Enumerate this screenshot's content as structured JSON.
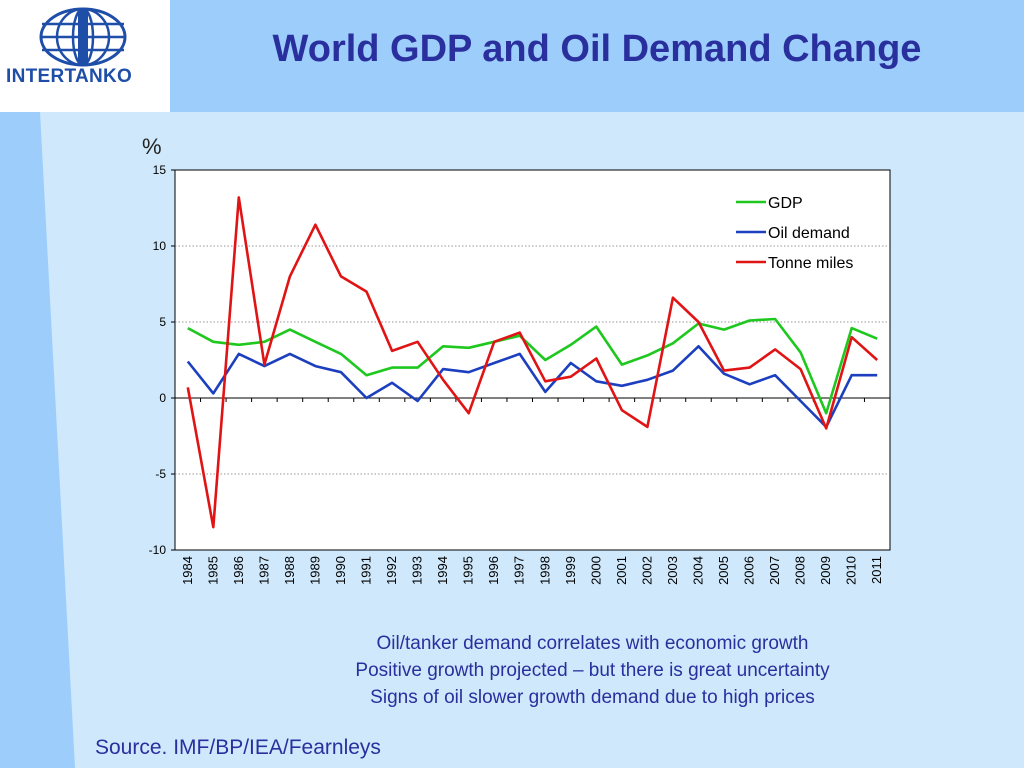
{
  "logo": {
    "text": "INTERTANKO"
  },
  "slide": {
    "title": "World GDP and Oil Demand Change",
    "notes": [
      "Oil/tanker demand correlates with economic growth",
      "Positive growth projected – but there is great  uncertainty",
      "Signs of oil slower growth demand due to high prices"
    ],
    "source": "Source. IMF/BP/IEA/Fearnleys"
  },
  "colors": {
    "gdp": "#1ec81e",
    "oil": "#1c3fbf",
    "tonne": "#e01414",
    "title": "#2a2f9e"
  },
  "chart_data": {
    "type": "line",
    "title": "",
    "ylabel": "%",
    "xlabel": "",
    "ylim": [
      -10,
      15
    ],
    "yticks": [
      15,
      10,
      5,
      0,
      -5,
      -10
    ],
    "grid": true,
    "legend_position": "top-right",
    "x": [
      "1984",
      "1985",
      "1986",
      "1987",
      "1988",
      "1989",
      "1990",
      "1991",
      "1992",
      "1993",
      "1994",
      "1995",
      "1996",
      "1997",
      "1998",
      "1999",
      "2000",
      "2001",
      "2002",
      "2003",
      "2004",
      "2005",
      "2006",
      "2007",
      "2008",
      "2009",
      "2010",
      "2011"
    ],
    "series": [
      {
        "name": "GDP",
        "color": "#1ec81e",
        "values": [
          4.6,
          3.7,
          3.5,
          3.7,
          4.5,
          3.7,
          2.9,
          1.5,
          2.0,
          2.0,
          3.4,
          3.3,
          3.7,
          4.1,
          2.5,
          3.5,
          4.7,
          2.2,
          2.8,
          3.6,
          4.9,
          4.5,
          5.1,
          5.2,
          3.0,
          -1.0,
          4.6,
          3.9
        ]
      },
      {
        "name": "Oil demand",
        "color": "#1c3fbf",
        "values": [
          2.4,
          0.3,
          2.9,
          2.1,
          2.9,
          2.1,
          1.7,
          0.0,
          1.0,
          -0.2,
          1.9,
          1.7,
          2.3,
          2.9,
          0.4,
          2.3,
          1.1,
          0.8,
          1.2,
          1.8,
          3.4,
          1.6,
          0.9,
          1.5,
          -0.2,
          -1.9,
          1.5,
          1.5
        ]
      },
      {
        "name": "Tonne miles",
        "color": "#e01414",
        "values": [
          0.7,
          -8.5,
          13.2,
          2.2,
          8.0,
          11.4,
          8.0,
          7.0,
          3.1,
          3.7,
          1.2,
          -1.0,
          3.7,
          4.3,
          1.1,
          1.4,
          2.6,
          -0.8,
          -1.9,
          6.6,
          5.0,
          1.8,
          2.0,
          3.2,
          1.9,
          -2.0,
          4.0,
          2.5
        ]
      }
    ]
  }
}
